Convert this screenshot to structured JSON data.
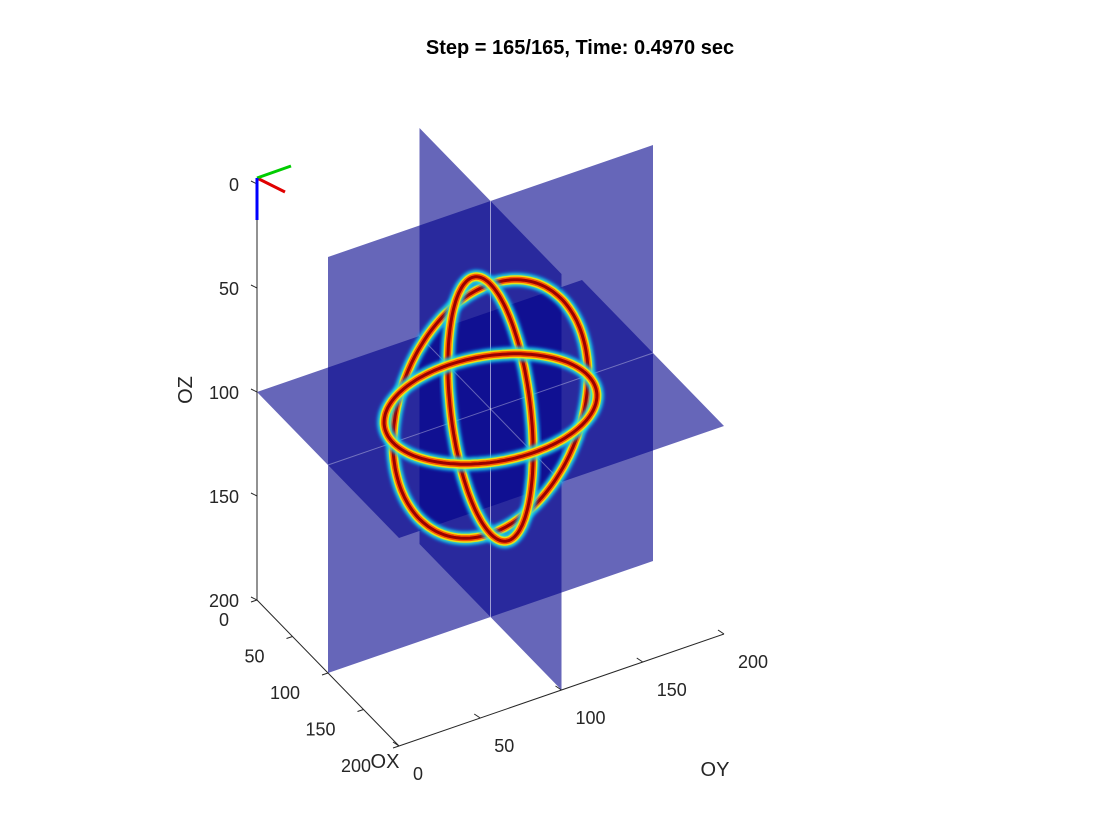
{
  "chart_data": {
    "type": "volume-slice-3d",
    "title": "Step = 165/165, Time: 0.4970 sec",
    "xlabel": "OX",
    "ylabel": "OY",
    "zlabel": "OZ",
    "xlim": [
      0,
      200
    ],
    "ylim": [
      0,
      200
    ],
    "zlim": [
      0,
      200
    ],
    "z_direction": "reverse",
    "xticks": [
      0,
      50,
      100,
      150,
      200
    ],
    "yticks": [
      0,
      50,
      100,
      150,
      200
    ],
    "zticks": [
      0,
      50,
      100,
      150,
      200
    ],
    "xtick_labels": [
      "0",
      "50",
      "100",
      "150",
      "200"
    ],
    "ytick_labels": [
      "0",
      "50",
      "100",
      "150",
      "200"
    ],
    "ztick_labels": [
      "0",
      "50",
      "100",
      "150",
      "200"
    ],
    "slices": {
      "x": 100,
      "y": 100,
      "z": 100
    },
    "slice_color": "#00008b",
    "slice_alpha": 0.6,
    "colormap": "jet",
    "grid": false,
    "orientation_triad": {
      "x_color": "#e00000",
      "y_color": "#00cc00",
      "z_color": "#0000ff"
    }
  }
}
